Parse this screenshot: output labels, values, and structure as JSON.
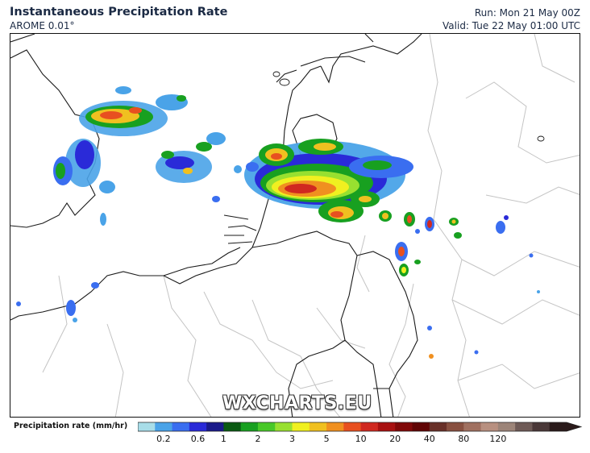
{
  "header": {
    "title": "Instantaneous Precipitation Rate",
    "model": "AROME 0.01°",
    "run": "Run: Mon 21 May 00Z",
    "valid": "Valid: Tue 22 May 01:00 UTC"
  },
  "watermark": "WXCHARTS.EU",
  "legend": {
    "label": "Precipitation rate (mm/hr)",
    "colors": [
      "#a8dde8",
      "#4aa3e8",
      "#3a6ef0",
      "#2a2ad8",
      "#1a1a8a",
      "#0a5a12",
      "#18a020",
      "#48c828",
      "#98e030",
      "#f0f020",
      "#f0c020",
      "#f09020",
      "#e85020",
      "#d02820",
      "#a81010",
      "#800808",
      "#600404",
      "#683028",
      "#885040",
      "#a07060",
      "#b89080",
      "#9c8478",
      "#6e5a56",
      "#4a3838",
      "#2a1a1a"
    ],
    "tick_labels": [
      "0.2",
      "0.6",
      "1",
      "2",
      "3",
      "5",
      "10",
      "20",
      "40",
      "80",
      "120"
    ],
    "tick_positions": [
      1.5,
      3.5,
      5,
      7,
      9,
      11,
      13,
      15,
      17,
      19,
      21
    ]
  }
}
